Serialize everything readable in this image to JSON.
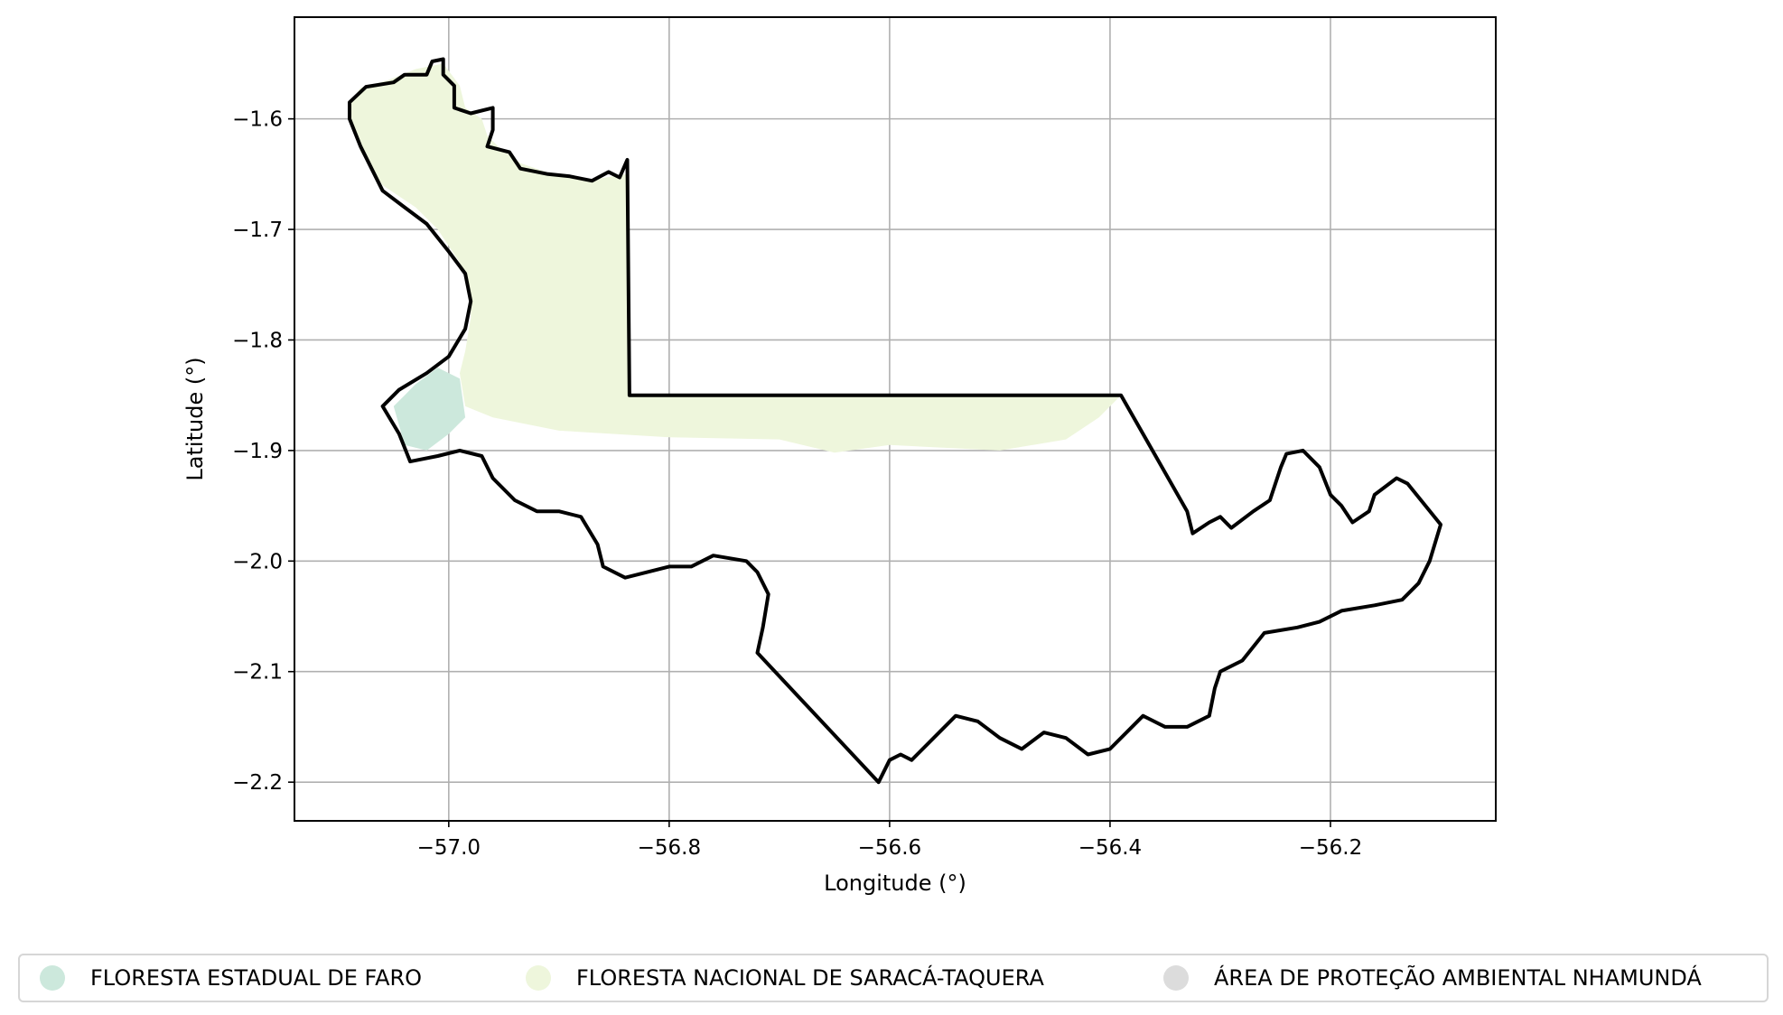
{
  "chart_data": {
    "type": "map",
    "xlabel": "Longitude (°)",
    "ylabel": "Latitude (°)",
    "xlim": [
      -57.14,
      -56.05
    ],
    "ylim": [
      -2.235,
      -1.508
    ],
    "x_ticks": [
      -57.0,
      -56.8,
      -56.6,
      -56.4,
      -56.2
    ],
    "x_tick_labels": [
      "−57.0",
      "−56.8",
      "−56.6",
      "−56.4",
      "−56.2"
    ],
    "y_ticks": [
      -1.6,
      -1.7,
      -1.8,
      -1.9,
      -2.0,
      -2.1,
      -2.2
    ],
    "y_tick_labels": [
      "−1.6",
      "−1.7",
      "−1.8",
      "−1.9",
      "−2.0",
      "−2.1",
      "−2.2"
    ],
    "grid": true,
    "legend_position": "bottom",
    "series": [
      {
        "name": "FLORESTA ESTADUAL DE FARO",
        "color": "#cce8dc",
        "polygon": [
          [
            -57.05,
            -1.86
          ],
          [
            -57.04,
            -1.85
          ],
          [
            -57.03,
            -1.84
          ],
          [
            -57.01,
            -1.825
          ],
          [
            -56.99,
            -1.835
          ],
          [
            -56.985,
            -1.87
          ],
          [
            -57.0,
            -1.885
          ],
          [
            -57.02,
            -1.9
          ],
          [
            -57.04,
            -1.895
          ]
        ]
      },
      {
        "name": "FLORESTA NACIONAL DE SARACÁ-TAQUERA",
        "color": "#eef6dc",
        "polygon": [
          [
            -57.09,
            -1.585
          ],
          [
            -57.08,
            -1.572
          ],
          [
            -57.055,
            -1.565
          ],
          [
            -57.03,
            -1.555
          ],
          [
            -57.005,
            -1.55
          ],
          [
            -56.99,
            -1.57
          ],
          [
            -56.985,
            -1.59
          ],
          [
            -56.97,
            -1.6
          ],
          [
            -56.965,
            -1.615
          ],
          [
            -56.955,
            -1.625
          ],
          [
            -56.935,
            -1.64
          ],
          [
            -56.9,
            -1.652
          ],
          [
            -56.87,
            -1.655
          ],
          [
            -56.838,
            -1.65
          ],
          [
            -56.836,
            -1.85
          ],
          [
            -56.39,
            -1.85
          ],
          [
            -56.41,
            -1.87
          ],
          [
            -56.44,
            -1.89
          ],
          [
            -56.5,
            -1.9
          ],
          [
            -56.6,
            -1.895
          ],
          [
            -56.65,
            -1.902
          ],
          [
            -56.7,
            -1.89
          ],
          [
            -56.8,
            -1.888
          ],
          [
            -56.9,
            -1.882
          ],
          [
            -56.96,
            -1.87
          ],
          [
            -56.985,
            -1.86
          ],
          [
            -56.99,
            -1.83
          ],
          [
            -56.985,
            -1.81
          ],
          [
            -56.98,
            -1.78
          ],
          [
            -56.98,
            -1.76
          ],
          [
            -56.99,
            -1.73
          ],
          [
            -57.01,
            -1.7
          ],
          [
            -57.03,
            -1.68
          ],
          [
            -57.06,
            -1.66
          ],
          [
            -57.08,
            -1.63
          ],
          [
            -57.09,
            -1.6
          ]
        ]
      },
      {
        "name": "ÁREA DE PROTEÇÃO AMBIENTAL NHAMUNDÁ",
        "color": "#dcdcdc",
        "polygon": [
          [
            -57.09,
            -1.585
          ],
          [
            -57.075,
            -1.571
          ],
          [
            -57.05,
            -1.567
          ],
          [
            -57.04,
            -1.56
          ],
          [
            -57.02,
            -1.56
          ],
          [
            -57.015,
            -1.548
          ],
          [
            -57.005,
            -1.546
          ],
          [
            -57.005,
            -1.56
          ],
          [
            -56.995,
            -1.57
          ],
          [
            -56.995,
            -1.59
          ],
          [
            -56.98,
            -1.595
          ],
          [
            -56.96,
            -1.59
          ],
          [
            -56.96,
            -1.61
          ],
          [
            -56.965,
            -1.625
          ],
          [
            -56.945,
            -1.63
          ],
          [
            -56.935,
            -1.645
          ],
          [
            -56.91,
            -1.65
          ],
          [
            -56.89,
            -1.652
          ],
          [
            -56.87,
            -1.656
          ],
          [
            -56.855,
            -1.648
          ],
          [
            -56.845,
            -1.653
          ],
          [
            -56.838,
            -1.637
          ],
          [
            -56.836,
            -1.85
          ],
          [
            -56.39,
            -1.85
          ],
          [
            -56.33,
            -1.955
          ],
          [
            -56.325,
            -1.975
          ],
          [
            -56.31,
            -1.965
          ],
          [
            -56.3,
            -1.96
          ],
          [
            -56.29,
            -1.97
          ],
          [
            -56.27,
            -1.955
          ],
          [
            -56.255,
            -1.945
          ],
          [
            -56.245,
            -1.915
          ],
          [
            -56.24,
            -1.903
          ],
          [
            -56.225,
            -1.9
          ],
          [
            -56.21,
            -1.915
          ],
          [
            -56.2,
            -1.94
          ],
          [
            -56.19,
            -1.95
          ],
          [
            -56.18,
            -1.965
          ],
          [
            -56.165,
            -1.955
          ],
          [
            -56.16,
            -1.94
          ],
          [
            -56.14,
            -1.925
          ],
          [
            -56.13,
            -1.93
          ],
          [
            -56.1,
            -1.967
          ],
          [
            -56.11,
            -2.0
          ],
          [
            -56.12,
            -2.02
          ],
          [
            -56.135,
            -2.035
          ],
          [
            -56.16,
            -2.04
          ],
          [
            -56.19,
            -2.045
          ],
          [
            -56.21,
            -2.055
          ],
          [
            -56.23,
            -2.06
          ],
          [
            -56.26,
            -2.065
          ],
          [
            -56.28,
            -2.09
          ],
          [
            -56.3,
            -2.1
          ],
          [
            -56.305,
            -2.115
          ],
          [
            -56.31,
            -2.14
          ],
          [
            -56.33,
            -2.15
          ],
          [
            -56.35,
            -2.15
          ],
          [
            -56.37,
            -2.14
          ],
          [
            -56.38,
            -2.15
          ],
          [
            -56.4,
            -2.17
          ],
          [
            -56.42,
            -2.175
          ],
          [
            -56.44,
            -2.16
          ],
          [
            -56.46,
            -2.155
          ],
          [
            -56.48,
            -2.17
          ],
          [
            -56.5,
            -2.16
          ],
          [
            -56.52,
            -2.145
          ],
          [
            -56.54,
            -2.14
          ],
          [
            -56.56,
            -2.16
          ],
          [
            -56.58,
            -2.18
          ],
          [
            -56.59,
            -2.175
          ],
          [
            -56.6,
            -2.18
          ],
          [
            -56.61,
            -2.2
          ],
          [
            -56.72,
            -2.083
          ],
          [
            -56.715,
            -2.06
          ],
          [
            -56.71,
            -2.03
          ],
          [
            -56.72,
            -2.01
          ],
          [
            -56.73,
            -2.0
          ],
          [
            -56.76,
            -1.995
          ],
          [
            -56.78,
            -2.005
          ],
          [
            -56.8,
            -2.005
          ],
          [
            -56.82,
            -2.01
          ],
          [
            -56.84,
            -2.015
          ],
          [
            -56.86,
            -2.005
          ],
          [
            -56.865,
            -1.985
          ],
          [
            -56.88,
            -1.96
          ],
          [
            -56.9,
            -1.955
          ],
          [
            -56.92,
            -1.955
          ],
          [
            -56.94,
            -1.945
          ],
          [
            -56.96,
            -1.925
          ],
          [
            -56.97,
            -1.905
          ],
          [
            -56.99,
            -1.9
          ],
          [
            -57.01,
            -1.905
          ],
          [
            -57.035,
            -1.91
          ],
          [
            -57.045,
            -1.885
          ],
          [
            -57.06,
            -1.86
          ],
          [
            -57.045,
            -1.845
          ],
          [
            -57.02,
            -1.83
          ],
          [
            -57.0,
            -1.815
          ],
          [
            -56.985,
            -1.79
          ],
          [
            -56.98,
            -1.765
          ],
          [
            -56.985,
            -1.74
          ],
          [
            -57.0,
            -1.72
          ],
          [
            -57.02,
            -1.695
          ],
          [
            -57.04,
            -1.68
          ],
          [
            -57.06,
            -1.665
          ],
          [
            -57.07,
            -1.645
          ],
          [
            -57.08,
            -1.625
          ],
          [
            -57.09,
            -1.6
          ]
        ]
      }
    ]
  },
  "legend": {
    "items": [
      {
        "label": "FLORESTA ESTADUAL DE FARO",
        "color": "#cce8dc"
      },
      {
        "label": "FLORESTA NACIONAL DE SARACÁ-TAQUERA",
        "color": "#eef6dc"
      },
      {
        "label": "ÁREA DE PROTEÇÃO AMBIENTAL NHAMUNDÁ",
        "color": "#dcdcdc"
      }
    ]
  }
}
